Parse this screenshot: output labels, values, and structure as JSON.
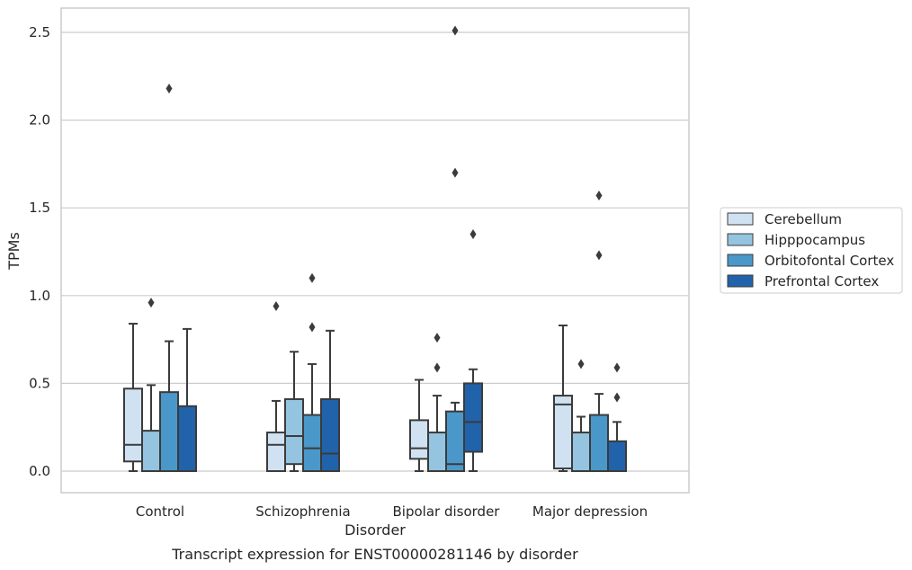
{
  "chart_data": {
    "type": "box",
    "title": "",
    "caption": "Transcript expression for ENST00000281146 by disorder",
    "xlabel": "Disorder",
    "ylabel": "TPMs",
    "ylim": [
      -0.12,
      2.65
    ],
    "yticks": [
      0.0,
      0.5,
      1.0,
      1.5,
      2.0,
      2.5
    ],
    "ytick_labels": [
      "0.0",
      "0.5",
      "1.0",
      "1.5",
      "2.0",
      "2.5"
    ],
    "grid": "horizontal",
    "legend_position": "right",
    "categories": [
      "Control",
      "Schizophrenia",
      "Bipolar disorder",
      "Major depression"
    ],
    "series": [
      {
        "name": "Cerebellum",
        "color": "#d0e1f2",
        "boxes": [
          {
            "whislo": 0.0,
            "q1": 0.055,
            "med": 0.15,
            "q3": 0.47,
            "whishi": 0.84,
            "fliers": []
          },
          {
            "whislo": 0.0,
            "q1": 0.0,
            "med": 0.15,
            "q3": 0.22,
            "whishi": 0.4,
            "fliers": [
              0.94
            ]
          },
          {
            "whislo": 0.0,
            "q1": 0.07,
            "med": 0.13,
            "q3": 0.29,
            "whishi": 0.52,
            "fliers": []
          },
          {
            "whislo": 0.0,
            "q1": 0.015,
            "med": 0.38,
            "q3": 0.43,
            "whishi": 0.83,
            "fliers": []
          }
        ]
      },
      {
        "name": "Hipppocampus",
        "color": "#94c4df",
        "boxes": [
          {
            "whislo": 0.0,
            "q1": 0.0,
            "med": 0.0,
            "q3": 0.23,
            "whishi": 0.49,
            "fliers": [
              0.96
            ]
          },
          {
            "whislo": 0.0,
            "q1": 0.04,
            "med": 0.2,
            "q3": 0.41,
            "whishi": 0.68,
            "fliers": []
          },
          {
            "whislo": 0.0,
            "q1": 0.0,
            "med": 0.0,
            "q3": 0.22,
            "whishi": 0.43,
            "fliers": [
              0.59,
              0.76
            ]
          },
          {
            "whislo": 0.0,
            "q1": 0.0,
            "med": 0.0,
            "q3": 0.22,
            "whishi": 0.31,
            "fliers": [
              0.61
            ]
          }
        ]
      },
      {
        "name": "Orbitofontal Cortex",
        "color": "#4a98c9",
        "boxes": [
          {
            "whislo": 0.0,
            "q1": 0.0,
            "med": 0.0,
            "q3": 0.45,
            "whishi": 0.74,
            "fliers": [
              2.18
            ]
          },
          {
            "whislo": 0.0,
            "q1": 0.0,
            "med": 0.13,
            "q3": 0.32,
            "whishi": 0.61,
            "fliers": [
              0.82,
              1.1
            ]
          },
          {
            "whislo": 0.0,
            "q1": 0.0,
            "med": 0.04,
            "q3": 0.34,
            "whishi": 0.39,
            "fliers": [
              1.7,
              2.51
            ]
          },
          {
            "whislo": 0.0,
            "q1": 0.0,
            "med": 0.0,
            "q3": 0.32,
            "whishi": 0.44,
            "fliers": [
              1.23,
              1.57
            ]
          }
        ]
      },
      {
        "name": "Prefrontal Cortex",
        "color": "#2163aa",
        "boxes": [
          {
            "whislo": 0.0,
            "q1": 0.0,
            "med": 0.0,
            "q3": 0.37,
            "whishi": 0.81,
            "fliers": []
          },
          {
            "whislo": 0.0,
            "q1": 0.0,
            "med": 0.1,
            "q3": 0.41,
            "whishi": 0.8,
            "fliers": []
          },
          {
            "whislo": 0.0,
            "q1": 0.11,
            "med": 0.28,
            "q3": 0.5,
            "whishi": 0.58,
            "fliers": [
              1.35
            ]
          },
          {
            "whislo": 0.0,
            "q1": 0.0,
            "med": 0.0,
            "q3": 0.17,
            "whishi": 0.28,
            "fliers": [
              0.42,
              0.59
            ]
          }
        ]
      }
    ]
  }
}
